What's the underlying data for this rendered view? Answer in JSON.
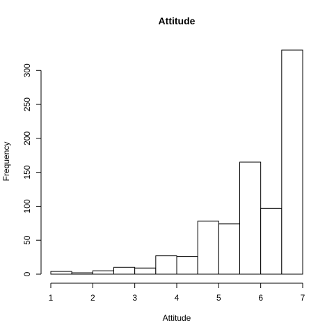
{
  "chart_data": {
    "type": "bar",
    "title": "Attitude",
    "xlabel": "Attitude",
    "ylabel": "Frequency",
    "bins": [
      {
        "x0": 1.0,
        "x1": 1.5,
        "count": 4
      },
      {
        "x0": 1.5,
        "x1": 2.0,
        "count": 2
      },
      {
        "x0": 2.0,
        "x1": 2.5,
        "count": 5
      },
      {
        "x0": 2.5,
        "x1": 3.0,
        "count": 10
      },
      {
        "x0": 3.0,
        "x1": 3.5,
        "count": 9
      },
      {
        "x0": 3.5,
        "x1": 4.0,
        "count": 27
      },
      {
        "x0": 4.0,
        "x1": 4.5,
        "count": 26
      },
      {
        "x0": 4.5,
        "x1": 5.0,
        "count": 78
      },
      {
        "x0": 5.0,
        "x1": 5.5,
        "count": 74
      },
      {
        "x0": 5.5,
        "x1": 6.0,
        "count": 165
      },
      {
        "x0": 6.0,
        "x1": 6.5,
        "count": 97
      },
      {
        "x0": 6.5,
        "x1": 7.0,
        "count": 330
      }
    ],
    "xticks": [
      "1",
      "2",
      "3",
      "4",
      "5",
      "6",
      "7"
    ],
    "yticks": [
      "0",
      "50",
      "100",
      "150",
      "200",
      "250",
      "300"
    ],
    "xlim": [
      1,
      7
    ],
    "ylim": [
      0,
      330
    ],
    "grid": false
  }
}
